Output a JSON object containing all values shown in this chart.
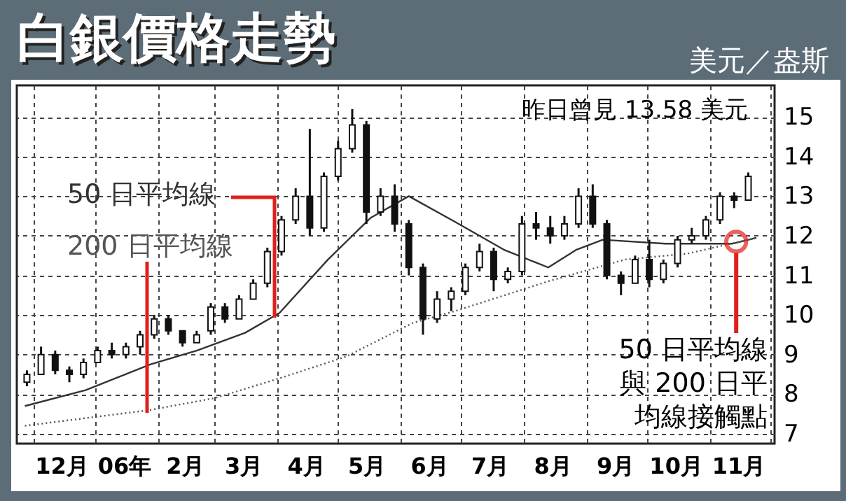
{
  "chart_data": {
    "type": "candlestick",
    "title": "白銀價格走勢",
    "ylabel": "美元／盎斯",
    "annotations": [
      "昨日曾見 13.58 美元",
      {
        "text": "50 日平均線與 200 日平均線接觸點",
        "x": "2006-11-14",
        "y": 11.85
      }
    ],
    "color": "#111111",
    "x": [
      "2005-11-28",
      "2005-12-05",
      "2005-12-12",
      "2005-12-19",
      "2005-12-26",
      "2006-01-02",
      "2006-01-09",
      "2006-01-16",
      "2006-01-23",
      "2006-01-30",
      "2006-02-06",
      "2006-02-13",
      "2006-02-20",
      "2006-02-27",
      "2006-03-06",
      "2006-03-13",
      "2006-03-20",
      "2006-03-27",
      "2006-04-03",
      "2006-04-10",
      "2006-04-17",
      "2006-04-24",
      "2006-05-01",
      "2006-05-08",
      "2006-05-15",
      "2006-05-22",
      "2006-05-29",
      "2006-06-05",
      "2006-06-12",
      "2006-06-19",
      "2006-06-26",
      "2006-07-03",
      "2006-07-10",
      "2006-07-17",
      "2006-07-24",
      "2006-07-31",
      "2006-08-07",
      "2006-08-14",
      "2006-08-21",
      "2006-08-28",
      "2006-09-04",
      "2006-09-11",
      "2006-09-18",
      "2006-09-25",
      "2006-10-02",
      "2006-10-09",
      "2006-10-16",
      "2006-10-23",
      "2006-10-30",
      "2006-11-06",
      "2006-11-13",
      "2006-11-20"
    ],
    "ohlc": [
      [
        8.3,
        8.6,
        8.2,
        8.5
      ],
      [
        8.5,
        9.2,
        8.5,
        9.0
      ],
      [
        9.0,
        9.1,
        8.5,
        8.6
      ],
      [
        8.6,
        8.7,
        8.3,
        8.5
      ],
      [
        8.5,
        8.9,
        8.4,
        8.8
      ],
      [
        8.8,
        9.2,
        8.8,
        9.1
      ],
      [
        9.1,
        9.3,
        8.9,
        9.0
      ],
      [
        9.0,
        9.3,
        8.9,
        9.2
      ],
      [
        9.2,
        9.6,
        9.0,
        9.5
      ],
      [
        9.5,
        10.0,
        9.4,
        9.9
      ],
      [
        9.9,
        10.0,
        9.5,
        9.6
      ],
      [
        9.6,
        9.6,
        9.2,
        9.3
      ],
      [
        9.3,
        9.6,
        9.3,
        9.5
      ],
      [
        9.6,
        10.3,
        9.5,
        10.2
      ],
      [
        10.2,
        10.3,
        9.8,
        9.9
      ],
      [
        9.9,
        10.5,
        9.9,
        10.4
      ],
      [
        10.4,
        10.9,
        10.4,
        10.8
      ],
      [
        10.8,
        11.7,
        10.7,
        11.6
      ],
      [
        11.6,
        12.5,
        11.5,
        12.4
      ],
      [
        12.4,
        13.2,
        12.3,
        13.0
      ],
      [
        13.0,
        14.7,
        12.0,
        12.2
      ],
      [
        12.2,
        13.6,
        12.1,
        13.5
      ],
      [
        13.5,
        14.4,
        13.4,
        14.2
      ],
      [
        14.2,
        15.2,
        14.1,
        14.8
      ],
      [
        14.8,
        14.9,
        12.3,
        12.6
      ],
      [
        12.6,
        13.2,
        12.5,
        13.0
      ],
      [
        13.0,
        13.3,
        12.1,
        12.3
      ],
      [
        12.3,
        12.4,
        11.0,
        11.2
      ],
      [
        11.2,
        11.3,
        9.5,
        9.9
      ],
      [
        9.9,
        10.6,
        9.8,
        10.4
      ],
      [
        10.4,
        10.7,
        10.1,
        10.6
      ],
      [
        10.6,
        11.3,
        10.5,
        11.2
      ],
      [
        11.2,
        11.8,
        11.1,
        11.6
      ],
      [
        11.6,
        11.7,
        10.6,
        10.9
      ],
      [
        10.9,
        11.2,
        10.8,
        11.1
      ],
      [
        11.1,
        12.5,
        11.0,
        12.3
      ],
      [
        12.3,
        12.6,
        11.9,
        12.2
      ],
      [
        12.2,
        12.5,
        11.8,
        12.0
      ],
      [
        12.0,
        12.5,
        11.9,
        12.3
      ],
      [
        12.3,
        13.2,
        12.2,
        13.0
      ],
      [
        13.0,
        13.3,
        12.2,
        12.3
      ],
      [
        12.3,
        12.4,
        10.9,
        11.0
      ],
      [
        11.0,
        11.1,
        10.5,
        10.8
      ],
      [
        10.8,
        11.5,
        10.8,
        11.4
      ],
      [
        11.4,
        11.9,
        10.7,
        10.9
      ],
      [
        10.9,
        11.4,
        10.8,
        11.3
      ],
      [
        11.3,
        12.0,
        11.2,
        11.9
      ],
      [
        11.9,
        12.2,
        11.8,
        12.0
      ],
      [
        12.0,
        12.5,
        11.9,
        12.4
      ],
      [
        12.4,
        13.1,
        12.3,
        13.0
      ],
      [
        13.0,
        13.1,
        12.7,
        12.9
      ],
      [
        12.9,
        13.6,
        12.9,
        13.5
      ]
    ],
    "series": [
      {
        "name": "50 日平均線",
        "type": "line",
        "color": "#333333",
        "line_style": "solid",
        "x": [
          "2005-11-27",
          "2005-12-27",
          "2006-01-28",
          "2006-02-20",
          "2006-03-16",
          "2006-04-02",
          "2006-04-26",
          "2006-05-17",
          "2006-06-05",
          "2006-06-28",
          "2006-07-22",
          "2006-08-13",
          "2006-08-27",
          "2006-09-09",
          "2006-10-10",
          "2006-11-12",
          "2006-11-24"
        ],
        "values": [
          7.7,
          8.1,
          8.75,
          9.1,
          9.55,
          10.05,
          11.4,
          12.45,
          13.0,
          12.35,
          11.65,
          11.2,
          11.65,
          11.9,
          11.8,
          11.8,
          11.95
        ]
      },
      {
        "name": "200 日平均線",
        "type": "line",
        "color": "#555555",
        "line_style": "dotted",
        "x": [
          "2005-11-27",
          "2006-01-28",
          "2006-03-01",
          "2006-04-02",
          "2006-05-05",
          "2006-06-07",
          "2006-06-28",
          "2006-08-13",
          "2006-09-20",
          "2006-10-21",
          "2006-11-24"
        ],
        "values": [
          7.2,
          7.6,
          7.9,
          8.4,
          8.95,
          9.8,
          10.1,
          10.85,
          11.4,
          11.55,
          11.95
        ]
      }
    ],
    "xlim": [
      "2005-11-23",
      "2006-12-03"
    ],
    "xticks": [
      {
        "value": "2005-12-01",
        "label": null
      },
      {
        "value": "2005-12-15",
        "label": "12月"
      },
      {
        "value": "2006-01-01",
        "label": null
      },
      {
        "value": "2006-01-15",
        "label": "06年"
      },
      {
        "value": "2006-02-01",
        "label": null
      },
      {
        "value": "2006-02-14",
        "label": "2月"
      },
      {
        "value": "2006-03-01",
        "label": null
      },
      {
        "value": "2006-03-15",
        "label": "3月"
      },
      {
        "value": "2006-04-01",
        "label": null
      },
      {
        "value": "2006-04-15",
        "label": "4月"
      },
      {
        "value": "2006-05-01",
        "label": null
      },
      {
        "value": "2006-05-15",
        "label": "5月"
      },
      {
        "value": "2006-06-01",
        "label": null
      },
      {
        "value": "2006-06-15",
        "label": "6月"
      },
      {
        "value": "2006-07-01",
        "label": null
      },
      {
        "value": "2006-07-15",
        "label": "7月"
      },
      {
        "value": "2006-08-01",
        "label": null
      },
      {
        "value": "2006-08-15",
        "label": "8月"
      },
      {
        "value": "2006-09-01",
        "label": null
      },
      {
        "value": "2006-09-15",
        "label": "9月"
      },
      {
        "value": "2006-10-01",
        "label": null
      },
      {
        "value": "2006-10-15",
        "label": "10月"
      },
      {
        "value": "2006-11-01",
        "label": null
      },
      {
        "value": "2006-11-15",
        "label": "11月"
      },
      {
        "value": "2006-12-01",
        "label": null
      }
    ],
    "ylim": [
      6.75,
      15.8
    ],
    "yticks": [
      7,
      8,
      9,
      10,
      11,
      12,
      13,
      14,
      15
    ],
    "grid": true
  }
}
